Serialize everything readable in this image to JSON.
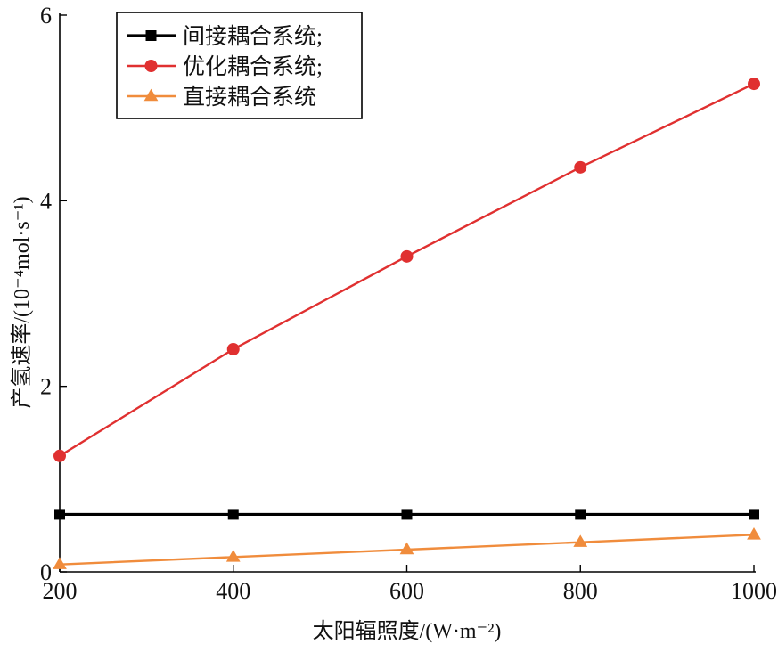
{
  "chart_data": {
    "type": "line",
    "xlabel": "太阳辐照度/(W·m⁻²)",
    "ylabel": "产氢速率/(10⁻⁴mol·s⁻¹)",
    "x": [
      200,
      400,
      600,
      800,
      1000
    ],
    "xlim": [
      200,
      1000
    ],
    "ylim": [
      0,
      6
    ],
    "xticks": [
      "200",
      "400",
      "600",
      "800",
      "1000"
    ],
    "yticks": [
      "0",
      "2",
      "4",
      "6"
    ],
    "grid": false,
    "legend_position": "top-left",
    "series": [
      {
        "name": "间接耦合系统;",
        "marker": "square",
        "color": "#000000",
        "values": [
          0.62,
          0.62,
          0.62,
          0.62,
          0.62
        ]
      },
      {
        "name": "优化耦合系统;",
        "marker": "circle",
        "color": "#e03030",
        "values": [
          1.25,
          2.4,
          3.4,
          4.36,
          5.26
        ]
      },
      {
        "name": "直接耦合系统",
        "marker": "triangle",
        "color": "#f08c3c",
        "values": [
          0.08,
          0.16,
          0.24,
          0.32,
          0.4
        ]
      }
    ]
  }
}
